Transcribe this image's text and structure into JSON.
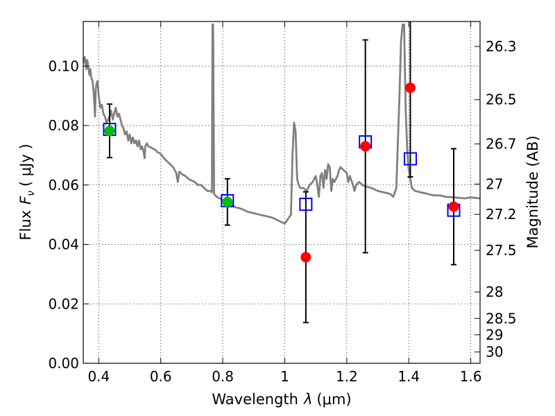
{
  "chart_data": {
    "type": "scatter",
    "xlabel": "Wavelength",
    "xlabel_symbol": "λ",
    "xlabel_unit": "(μm)",
    "ylabel": "Flux",
    "ylabel_symbol": "F",
    "ylabel_subscript": "ν",
    "ylabel_unit": "( μJy )",
    "y2label": "Magnitude (AB)",
    "xlim": [
      0.35,
      1.63
    ],
    "ylim": [
      0.0,
      0.115
    ],
    "grid": true,
    "x_ticks": [
      0.4,
      0.6,
      0.8,
      1.0,
      1.2,
      1.4,
      1.6
    ],
    "x_tick_labels": [
      "0.4",
      "0.6",
      "0.8",
      "1",
      "1.2",
      "1.4",
      "1.6"
    ],
    "y_ticks": [
      0.0,
      0.02,
      0.04,
      0.06,
      0.08,
      0.1
    ],
    "y_tick_labels": [
      "0.00",
      "0.02",
      "0.04",
      "0.06",
      "0.08",
      "0.10"
    ],
    "y2_tick_labels": [
      "26.3",
      "26.5",
      "26.7",
      "27",
      "27.2",
      "27.5",
      "28",
      "28.5",
      "29",
      "30"
    ],
    "y2_tick_flux": [
      0.1066,
      0.0887,
      0.0738,
      0.0603,
      0.0501,
      0.038,
      0.024,
      0.0151,
      0.0096,
      0.0038
    ],
    "series": [
      {
        "kind": "line",
        "color": "#808080",
        "points": [
          [
            0.35,
            0.101
          ],
          [
            0.355,
            0.103
          ],
          [
            0.36,
            0.099
          ],
          [
            0.363,
            0.102
          ],
          [
            0.366,
            0.1
          ],
          [
            0.37,
            0.097
          ],
          [
            0.373,
            0.099
          ],
          [
            0.376,
            0.096
          ],
          [
            0.38,
            0.095
          ],
          [
            0.383,
            0.092
          ],
          [
            0.386,
            0.087
          ],
          [
            0.388,
            0.083
          ],
          [
            0.39,
            0.092
          ],
          [
            0.393,
            0.094
          ],
          [
            0.396,
            0.095
          ],
          [
            0.4,
            0.09
          ],
          [
            0.405,
            0.086
          ],
          [
            0.41,
            0.087
          ],
          [
            0.415,
            0.084
          ],
          [
            0.42,
            0.083
          ],
          [
            0.425,
            0.081
          ],
          [
            0.43,
            0.082
          ],
          [
            0.435,
            0.083
          ],
          [
            0.44,
            0.085
          ],
          [
            0.445,
            0.082
          ],
          [
            0.45,
            0.084
          ],
          [
            0.455,
            0.086
          ],
          [
            0.46,
            0.083
          ],
          [
            0.465,
            0.084
          ],
          [
            0.47,
            0.082
          ],
          [
            0.475,
            0.08
          ],
          [
            0.48,
            0.079
          ],
          [
            0.485,
            0.077
          ],
          [
            0.49,
            0.078
          ],
          [
            0.495,
            0.075
          ],
          [
            0.5,
            0.077
          ],
          [
            0.505,
            0.074
          ],
          [
            0.51,
            0.076
          ],
          [
            0.515,
            0.074
          ],
          [
            0.52,
            0.075
          ],
          [
            0.525,
            0.073
          ],
          [
            0.53,
            0.075
          ],
          [
            0.535,
            0.072
          ],
          [
            0.54,
            0.073
          ],
          [
            0.545,
            0.071
          ],
          [
            0.548,
            0.069
          ],
          [
            0.55,
            0.073
          ],
          [
            0.555,
            0.074
          ],
          [
            0.56,
            0.073
          ],
          [
            0.57,
            0.0725
          ],
          [
            0.58,
            0.072
          ],
          [
            0.59,
            0.071
          ],
          [
            0.6,
            0.0705
          ],
          [
            0.61,
            0.069
          ],
          [
            0.62,
            0.068
          ],
          [
            0.63,
            0.067
          ],
          [
            0.64,
            0.066
          ],
          [
            0.65,
            0.064
          ],
          [
            0.655,
            0.061
          ],
          [
            0.66,
            0.0645
          ],
          [
            0.67,
            0.0635
          ],
          [
            0.68,
            0.063
          ],
          [
            0.69,
            0.062
          ],
          [
            0.7,
            0.0615
          ],
          [
            0.71,
            0.061
          ],
          [
            0.72,
            0.06
          ],
          [
            0.73,
            0.06
          ],
          [
            0.74,
            0.059
          ],
          [
            0.75,
            0.058
          ],
          [
            0.76,
            0.058
          ],
          [
            0.765,
            0.0575
          ],
          [
            0.767,
            0.114
          ],
          [
            0.769,
            0.114
          ],
          [
            0.772,
            0.057
          ],
          [
            0.78,
            0.056
          ],
          [
            0.79,
            0.0555
          ],
          [
            0.8,
            0.055
          ],
          [
            0.82,
            0.054
          ],
          [
            0.84,
            0.0525
          ],
          [
            0.86,
            0.052
          ],
          [
            0.88,
            0.051
          ],
          [
            0.9,
            0.0505
          ],
          [
            0.92,
            0.05
          ],
          [
            0.94,
            0.0495
          ],
          [
            0.96,
            0.049
          ],
          [
            0.98,
            0.048
          ],
          [
            0.99,
            0.0475
          ],
          [
            1.0,
            0.047
          ],
          [
            1.01,
            0.0485
          ],
          [
            1.02,
            0.05
          ],
          [
            1.025,
            0.07
          ],
          [
            1.03,
            0.081
          ],
          [
            1.035,
            0.078
          ],
          [
            1.04,
            0.062
          ],
          [
            1.045,
            0.06
          ],
          [
            1.05,
            0.059
          ],
          [
            1.06,
            0.059
          ],
          [
            1.07,
            0.058
          ],
          [
            1.08,
            0.06
          ],
          [
            1.09,
            0.061
          ],
          [
            1.1,
            0.063
          ],
          [
            1.105,
            0.06
          ],
          [
            1.11,
            0.056
          ],
          [
            1.115,
            0.063
          ],
          [
            1.12,
            0.064
          ],
          [
            1.125,
            0.059
          ],
          [
            1.13,
            0.065
          ],
          [
            1.135,
            0.062
          ],
          [
            1.14,
            0.067
          ],
          [
            1.145,
            0.066
          ],
          [
            1.15,
            0.058
          ],
          [
            1.155,
            0.062
          ],
          [
            1.16,
            0.061
          ],
          [
            1.17,
            0.063
          ],
          [
            1.175,
            0.065
          ],
          [
            1.18,
            0.066
          ],
          [
            1.19,
            0.065
          ],
          [
            1.2,
            0.064
          ],
          [
            1.205,
            0.061
          ],
          [
            1.21,
            0.063
          ],
          [
            1.22,
            0.06
          ],
          [
            1.225,
            0.058
          ],
          [
            1.23,
            0.06
          ],
          [
            1.24,
            0.061
          ],
          [
            1.25,
            0.06
          ],
          [
            1.26,
            0.0595
          ],
          [
            1.28,
            0.059
          ],
          [
            1.3,
            0.058
          ],
          [
            1.32,
            0.0575
          ],
          [
            1.34,
            0.057
          ],
          [
            1.35,
            0.056
          ],
          [
            1.36,
            0.059
          ],
          [
            1.365,
            0.075
          ],
          [
            1.37,
            0.09
          ],
          [
            1.375,
            0.108
          ],
          [
            1.38,
            0.114
          ],
          [
            1.385,
            0.114
          ],
          [
            1.39,
            0.085
          ],
          [
            1.395,
            0.072
          ],
          [
            1.4,
            0.065
          ],
          [
            1.41,
            0.059
          ],
          [
            1.42,
            0.058
          ],
          [
            1.44,
            0.0575
          ],
          [
            1.46,
            0.057
          ],
          [
            1.48,
            0.0565
          ],
          [
            1.5,
            0.0565
          ],
          [
            1.52,
            0.056
          ],
          [
            1.55,
            0.0558
          ],
          [
            1.58,
            0.0555
          ],
          [
            1.6,
            0.0558
          ],
          [
            1.63,
            0.0555
          ]
        ]
      },
      {
        "kind": "model_squares",
        "color": "#0000ff",
        "points": [
          [
            0.435,
            0.0787
          ],
          [
            0.815,
            0.0547
          ],
          [
            1.068,
            0.0535
          ],
          [
            1.26,
            0.0745
          ],
          [
            1.405,
            0.0688
          ],
          [
            1.545,
            0.0515
          ]
        ]
      },
      {
        "kind": "observed_points",
        "points": [
          {
            "x": 0.435,
            "y": 0.0782,
            "err": 0.009,
            "color": "#00c000"
          },
          {
            "x": 0.815,
            "y": 0.0543,
            "err": 0.0078,
            "color": "#00c000"
          },
          {
            "x": 1.068,
            "y": 0.0357,
            "err": 0.022,
            "color": "#ff0000"
          },
          {
            "x": 1.26,
            "y": 0.073,
            "err": 0.0358,
            "color": "#ff0000"
          },
          {
            "x": 1.405,
            "y": 0.0927,
            "err": 0.03,
            "color": "#ff0000"
          },
          {
            "x": 1.545,
            "y": 0.0527,
            "err": 0.0195,
            "color": "#ff0000"
          }
        ]
      }
    ]
  }
}
